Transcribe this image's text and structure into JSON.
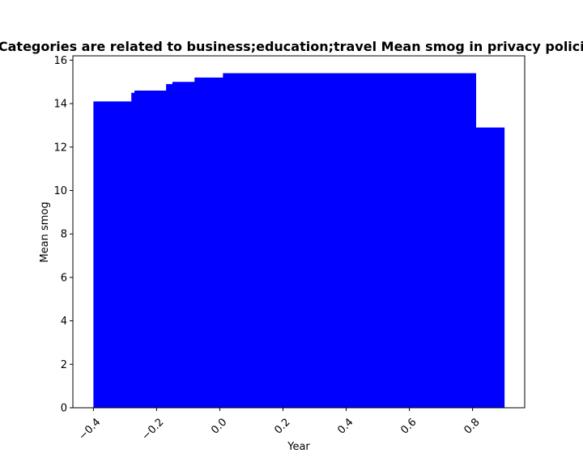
{
  "chart_data": {
    "type": "bar",
    "title": "Categories are related to business;education;travel Mean smog in privacy policies",
    "xlabel": "Year",
    "ylabel": "Mean smog",
    "xlim": [
      -0.465,
      0.965
    ],
    "ylim": [
      0,
      16.2
    ],
    "grid": false,
    "legend": "none",
    "bar_color": "#0000ff",
    "xticks": [
      -0.4,
      -0.2,
      0.0,
      0.2,
      0.4,
      0.6,
      0.8
    ],
    "xtick_labels": [
      "−0.4",
      "−0.2",
      "0.0",
      "0.2",
      "0.4",
      "0.6",
      "0.8"
    ],
    "yticks": [
      0,
      2,
      4,
      6,
      8,
      10,
      12,
      14,
      16
    ],
    "bars": [
      {
        "x0": -0.4,
        "x1": -0.28,
        "value": 14.1
      },
      {
        "x0": -0.28,
        "x1": -0.27,
        "value": 14.5
      },
      {
        "x0": -0.27,
        "x1": -0.17,
        "value": 14.6
      },
      {
        "x0": -0.17,
        "x1": -0.15,
        "value": 14.9
      },
      {
        "x0": -0.15,
        "x1": -0.08,
        "value": 15.0
      },
      {
        "x0": -0.08,
        "x1": 0.01,
        "value": 15.2
      },
      {
        "x0": 0.01,
        "x1": 0.81,
        "value": 15.4
      },
      {
        "x0": 0.81,
        "x1": 0.9,
        "value": 12.9
      }
    ]
  }
}
